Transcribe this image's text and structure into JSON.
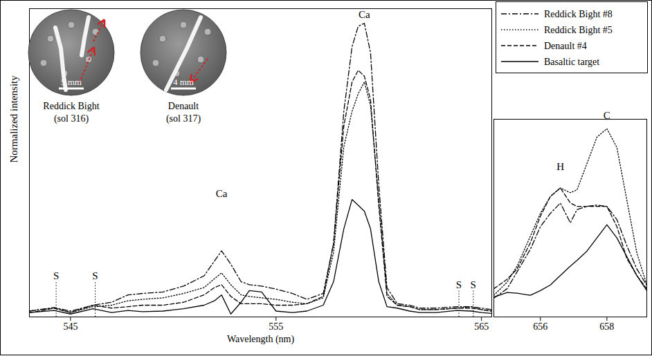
{
  "chart_data": [
    {
      "type": "line",
      "x_label": "Wavelength (nm)",
      "y_label": "Normalized intensity",
      "xlim": [
        543,
        565.5
      ],
      "xticks": [
        545,
        555,
        565
      ],
      "ylim": [
        0,
        105
      ],
      "grid": false,
      "tick_labels": "x",
      "legend": "top-right",
      "x": [
        543.0,
        543.5,
        544.2,
        545.0,
        546.1,
        547.0,
        547.8,
        548.5,
        549.5,
        550.5,
        551.5,
        552.0,
        552.35,
        552.8,
        553.3,
        553.7,
        554.3,
        555.0,
        555.8,
        556.5,
        557.3,
        557.8,
        558.3,
        558.7,
        559.0,
        559.3,
        559.6,
        560.0,
        560.4,
        560.9,
        561.5,
        562.0,
        562.8,
        563.8,
        564.5,
        565.0,
        565.5
      ],
      "series": [
        {
          "name": "Reddick Bight #8",
          "color": "#000000",
          "line_style": "dashdot",
          "values": [
            2.0,
            2.5,
            3.2,
            2.0,
            4.0,
            5.0,
            7.5,
            8.0,
            8.5,
            10.5,
            14,
            19,
            22.5,
            18,
            12,
            11,
            10.5,
            9.5,
            8.0,
            6.0,
            8.0,
            25,
            70,
            92,
            99,
            100,
            90,
            45,
            10,
            4.5,
            4.0,
            3.0,
            3.0,
            3.5,
            3.5,
            3.0,
            2.5
          ]
        },
        {
          "name": "Reddick Bight #5",
          "color": "#000000",
          "line_style": "dotted",
          "values": [
            2.0,
            2.5,
            3.0,
            1.5,
            3.5,
            4.0,
            5.5,
            6.0,
            6.5,
            8.0,
            10.0,
            13,
            15,
            11,
            7.5,
            7.0,
            6.5,
            6.0,
            5.0,
            4.5,
            6.5,
            22,
            58,
            70,
            76,
            80,
            72,
            40,
            8,
            4.0,
            3.5,
            2.5,
            2.5,
            3.0,
            3.5,
            2.5,
            2.0
          ]
        },
        {
          "name": "Denault #4",
          "color": "#000000",
          "line_style": "dashed",
          "values": [
            1.5,
            2.0,
            3.0,
            1.5,
            4.0,
            3.0,
            3.5,
            4.0,
            4.0,
            5.0,
            7.5,
            10,
            11,
            7,
            4.5,
            4.5,
            4.5,
            4.0,
            4.0,
            4.5,
            7.0,
            25,
            65,
            80,
            84,
            82,
            74,
            38,
            7,
            4.0,
            3.5,
            2.5,
            2.5,
            3.0,
            3.0,
            2.5,
            2.0
          ]
        },
        {
          "name": "Basaltic target",
          "color": "#000000",
          "line_style": "solid",
          "values": [
            1.5,
            1.8,
            2.2,
            1.0,
            2.8,
            1.5,
            2.2,
            1.8,
            2.0,
            2.8,
            4.0,
            5.5,
            7.5,
            1.0,
            5.0,
            9.0,
            8.5,
            2.0,
            1.5,
            2.0,
            4.0,
            12,
            30,
            40,
            38,
            36,
            30,
            12,
            3.5,
            3.0,
            2.0,
            1.5,
            1.5,
            2.2,
            2.0,
            1.5,
            1.2
          ]
        }
      ],
      "annotations": [
        {
          "text": "S",
          "x": 544.3,
          "y": 12,
          "line_style": "dotted"
        },
        {
          "text": "S",
          "x": 546.2,
          "y": 12,
          "line_style": "dotted"
        },
        {
          "text": "Ca",
          "x": 552.35,
          "y": 40
        },
        {
          "text": "Ca",
          "x": 559.3,
          "y": 101
        },
        {
          "text": "S",
          "x": 563.9,
          "y": 9,
          "line_style": "dotted"
        },
        {
          "text": "S",
          "x": 564.6,
          "y": 9,
          "line_style": "dotted"
        }
      ],
      "insets": [
        {
          "title": "Reddick Bight",
          "subtitle": "(sol 316)",
          "scale": "5 mm"
        },
        {
          "title": "Denault",
          "subtitle": "(sol 317)",
          "scale": "4 mm"
        }
      ]
    },
    {
      "type": "line",
      "xlim": [
        654.6,
        659.2
      ],
      "xticks": [
        656,
        658
      ],
      "ylim": [
        0,
        105
      ],
      "grid": false,
      "tick_labels": "x",
      "x": [
        654.6,
        655.0,
        655.3,
        655.7,
        656.0,
        656.3,
        656.6,
        656.9,
        657.1,
        657.4,
        657.7,
        658.0,
        658.3,
        658.6,
        658.9,
        659.2
      ],
      "series": [
        {
          "name": "Reddick Bight #8",
          "color": "#000000",
          "line_style": "dashdot",
          "values": [
            10,
            15,
            24,
            36,
            48,
            55,
            60.5,
            50,
            57,
            58.7,
            59.4,
            58.7,
            51.7,
            37.8,
            25.5,
            16.8
          ]
        },
        {
          "name": "Reddick Bight #5",
          "color": "#000000",
          "line_style": "dotted",
          "values": [
            11.5,
            18.5,
            27,
            43,
            55,
            64,
            68.5,
            66,
            67.5,
            81.5,
            95.5,
            100,
            90,
            62,
            34,
            17
          ]
        },
        {
          "name": "Denault #4",
          "color": "#000000",
          "line_style": "dashed",
          "values": [
            15,
            20,
            25.5,
            39.5,
            53.5,
            64,
            68.5,
            60.5,
            58.7,
            58.7,
            58.7,
            58.7,
            48,
            31,
            22,
            15
          ]
        },
        {
          "name": "Basaltic target",
          "color": "#000000",
          "line_style": "solid",
          "values": [
            10.5,
            13,
            12.6,
            11.5,
            14,
            17,
            22,
            27,
            30,
            35,
            42,
            49,
            42,
            32,
            22,
            14
          ]
        }
      ],
      "annotations": [
        {
          "text": "H",
          "x": 656.6,
          "y": 77
        },
        {
          "text": "C",
          "x": 658.0,
          "y": 104
        }
      ]
    }
  ]
}
